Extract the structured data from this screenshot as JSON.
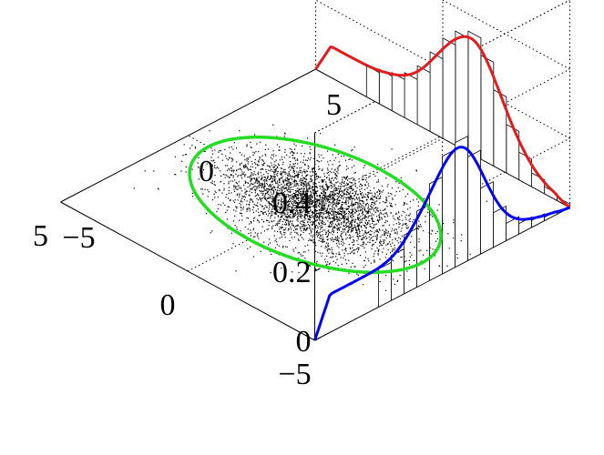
{
  "chart_data": {
    "type": "3d-histogram-scatter",
    "title": "",
    "x_axis": {
      "label": "",
      "range": [
        -5,
        5
      ],
      "ticks": [
        -5,
        0,
        5
      ],
      "tick_labels": [
        "−5",
        "0",
        "5"
      ]
    },
    "y_axis": {
      "label": "",
      "range": [
        -5,
        5
      ],
      "ticks": [
        -5,
        0,
        5
      ],
      "tick_labels": [
        "−5",
        "0",
        "5"
      ]
    },
    "z_axis": {
      "label": "",
      "range": [
        0,
        0.4
      ],
      "ticks": [
        0,
        0.2,
        0.4
      ],
      "tick_labels": [
        "0",
        "0.2",
        "0.4"
      ]
    },
    "grid": true,
    "x_marginal": {
      "color": "#e41a1c",
      "curve": "mixture density",
      "histogram_bins": {
        "centers": [
          -4.75,
          -4.25,
          -3.75,
          -3.25,
          -2.75,
          -2.25,
          -1.75,
          -1.25,
          -0.75,
          -0.25,
          0.25,
          0.75,
          1.25,
          1.75,
          2.25,
          2.75
        ],
        "values": [
          0.01,
          0.02,
          0.04,
          0.08,
          0.14,
          0.22,
          0.3,
          0.35,
          0.33,
          0.29,
          0.23,
          0.17,
          0.13,
          0.11,
          0.1,
          0.09
        ]
      }
    },
    "y_marginal": {
      "color": "#0000ff",
      "curve": "mixture density",
      "histogram_bins": {
        "centers": [
          -2.25,
          -1.75,
          -1.25,
          -0.75,
          -0.25,
          0.25,
          0.75,
          1.25,
          1.75,
          2.25,
          2.75,
          3.25,
          3.75,
          4.25,
          4.75
        ],
        "values": [
          0.11,
          0.13,
          0.17,
          0.22,
          0.28,
          0.34,
          0.36,
          0.3,
          0.19,
          0.1,
          0.05,
          0.03,
          0.02,
          0.01,
          0.005
        ]
      }
    },
    "scatter": {
      "color": "#000000",
      "n_points": 3500,
      "mean": [
        0,
        0
      ],
      "std": [
        1.6,
        1.0
      ]
    },
    "ellipse": {
      "color": "#22dd22",
      "center": [
        0,
        0
      ],
      "semi_axes": [
        4.2,
        2.6
      ],
      "angle_deg": 0
    }
  }
}
